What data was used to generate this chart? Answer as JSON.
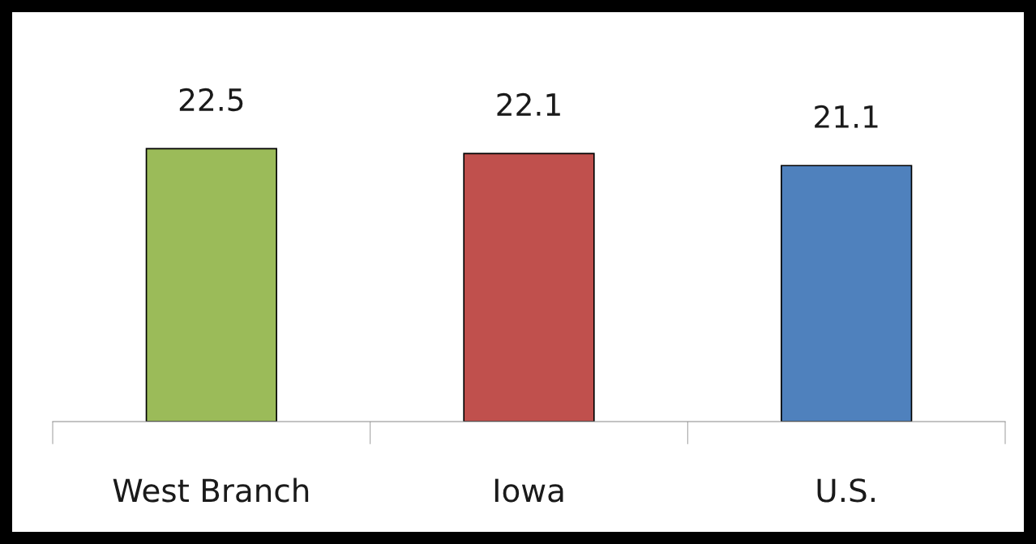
{
  "chart_data": {
    "type": "bar",
    "categories": [
      "West Branch",
      "Iowa",
      "U.S."
    ],
    "values": [
      22.5,
      22.1,
      21.1
    ],
    "colors": [
      "#9bbb59",
      "#c0504d",
      "#4f81bd"
    ],
    "data_labels": true,
    "grid": false,
    "legend": false
  }
}
